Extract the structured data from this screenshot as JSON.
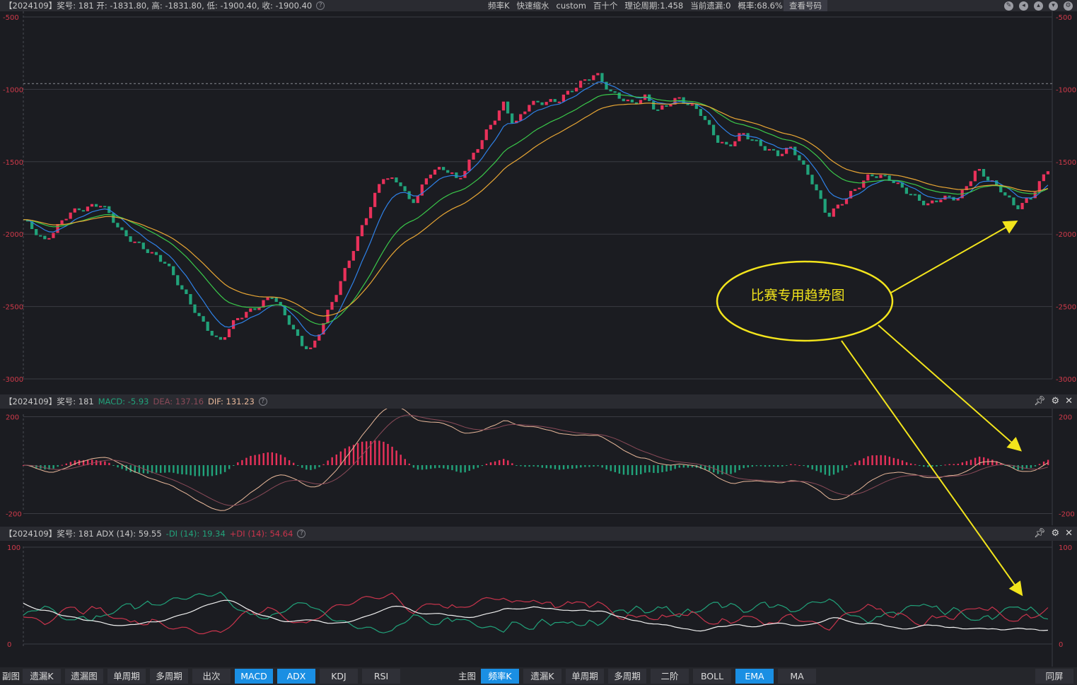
{
  "header": {
    "info": "【2024109】奖号: 181  开: -1831.80, 高: -1831.80, 低: -1900.40, 收: -1900.40",
    "mid_items": [
      "频率K",
      "快速缩水",
      "custom",
      "百十个",
      "理论周期:1.458",
      "当前遗漏:0",
      "概率:68.6%"
    ],
    "lookup_button": "查看号码",
    "right_icons": [
      "edit-icon",
      "back-icon",
      "up-icon",
      "down-icon",
      "settings-icon"
    ]
  },
  "main_axis": {
    "ticks_left": [
      "-500",
      "-1000",
      "-1500",
      "-2000",
      "-2500",
      "-3000"
    ],
    "ticks_right": [
      "-500",
      "-1000",
      "-1500",
      "-2000",
      "-2500",
      "-3000"
    ]
  },
  "annotation": {
    "text": "比赛专用趋势图",
    "color": "#f2e41c"
  },
  "macd_pane": {
    "title_prefix": "【2024109】奖号: 181",
    "macd_label": "MACD: -5.93",
    "dea_label": "DEA: 137.16",
    "dif_label": "DIF: 131.23",
    "ticks": [
      "200",
      "-200"
    ]
  },
  "adx_pane": {
    "title_prefix": "【2024109】奖号: 181  ADX (14): 59.55",
    "minus_di_label": "-DI (14): 19.34",
    "plus_di_label": "+DI (14): 54.64",
    "ticks": [
      "100",
      "0"
    ]
  },
  "colors": {
    "up": "#e8315a",
    "down": "#21a27a",
    "ema_fast": "#2f82e8",
    "ema_mid": "#3ac84a",
    "ema_slow": "#e8a634",
    "accent": "#1a8fe3"
  },
  "bottom_bar": {
    "sub_label": "副图",
    "sub_buttons": [
      {
        "label": "遗漏K",
        "active": false
      },
      {
        "label": "遗漏图",
        "active": false
      },
      {
        "label": "单周期",
        "active": false
      },
      {
        "label": "多周期",
        "active": false
      },
      {
        "label": "出次",
        "active": false
      },
      {
        "label": "MACD",
        "active": true
      },
      {
        "label": "ADX",
        "active": true
      },
      {
        "label": "KDJ",
        "active": false
      },
      {
        "label": "RSI",
        "active": false
      }
    ],
    "main_label": "主图",
    "main_buttons": [
      {
        "label": "频率K",
        "active": true
      },
      {
        "label": "遗漏K",
        "active": false
      },
      {
        "label": "单周期",
        "active": false
      },
      {
        "label": "多周期",
        "active": false
      },
      {
        "label": "二阶",
        "active": false
      },
      {
        "label": "BOLL",
        "active": false
      },
      {
        "label": "EMA",
        "active": true
      },
      {
        "label": "MA",
        "active": false
      }
    ],
    "right_button": "同屏"
  }
}
